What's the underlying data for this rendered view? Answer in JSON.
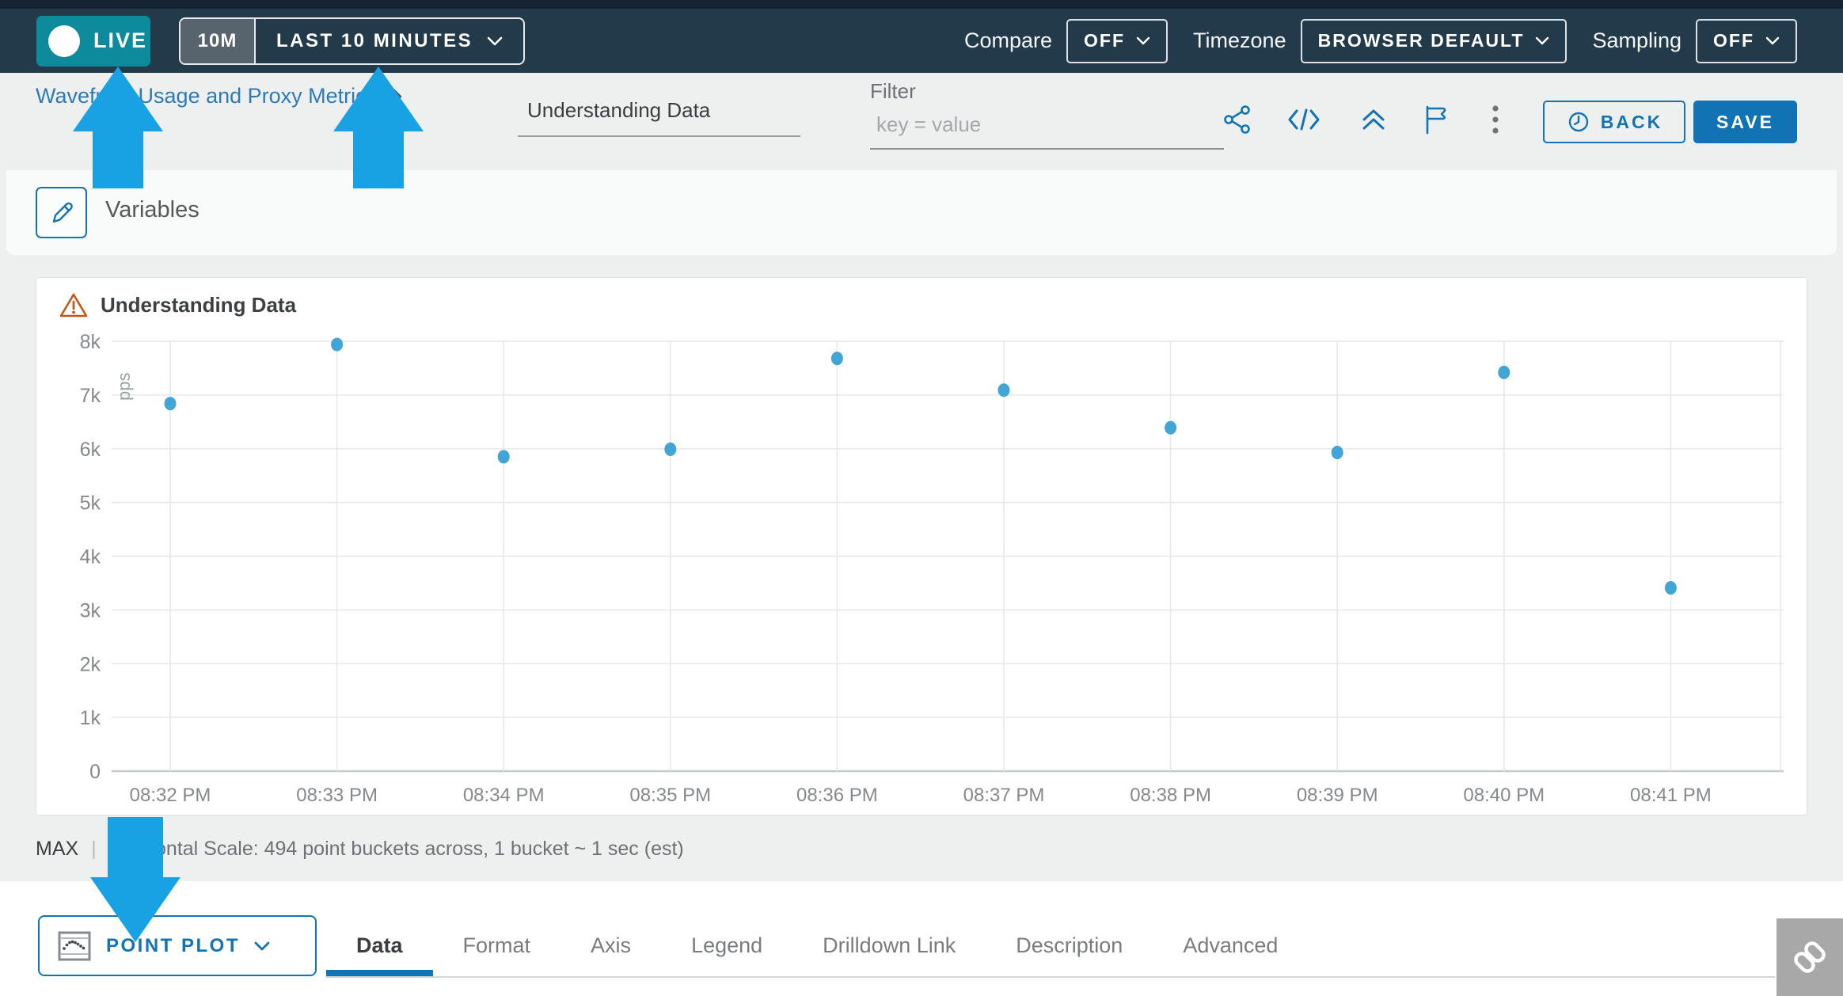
{
  "topbar": {
    "live_label": "LIVE",
    "window_badge": "10M",
    "time_range": "LAST 10 MINUTES",
    "compare_label": "Compare",
    "compare_value": "OFF",
    "timezone_label": "Timezone",
    "timezone_value": "BROWSER DEFAULT",
    "sampling_label": "Sampling",
    "sampling_value": "OFF"
  },
  "header": {
    "breadcrumb": "Wavefront Usage and Proxy Metrics",
    "chart_name": "Understanding Data",
    "filter_label": "Filter",
    "filter_placeholder": "key = value",
    "back_label": "BACK",
    "save_label": "SAVE"
  },
  "variables": {
    "label": "Variables"
  },
  "chart": {
    "title": "Understanding Data",
    "summary_stat": "MAX",
    "summary_divider": "|",
    "summary_text": "Horizontal Scale: 494 point buckets across, 1 bucket ~ 1 sec (est)"
  },
  "chart_data": {
    "type": "scatter",
    "title": "Understanding Data",
    "ylabel": "pps",
    "x": [
      "08:32 PM",
      "08:33 PM",
      "08:34 PM",
      "08:35 PM",
      "08:36 PM",
      "08:37 PM",
      "08:38 PM",
      "08:39 PM",
      "08:40 PM",
      "08:41 PM"
    ],
    "values": [
      6840,
      7940,
      5850,
      5990,
      7680,
      7090,
      6390,
      5930,
      7420,
      3410
    ],
    "ylim": [
      0,
      8000
    ],
    "ytick_labels": [
      "0",
      "1k",
      "2k",
      "3k",
      "4k",
      "5k",
      "6k",
      "7k",
      "8k"
    ],
    "grid": true,
    "legend": "none",
    "point_color": "#41a5d6"
  },
  "footer": {
    "chart_type": "POINT PLOT",
    "tabs": [
      "Data",
      "Format",
      "Axis",
      "Legend",
      "Drilldown Link",
      "Description",
      "Advanced"
    ],
    "active_tab": "Data"
  },
  "icons": {
    "toolbar": [
      "share-icon",
      "code-icon",
      "collapse-up-icon",
      "flag-icon",
      "kebab-menu-icon"
    ],
    "back_button": "history-clock-icon",
    "variables": "pencil-icon",
    "chart_title": "warning-icon",
    "chart_type_button": "point-plot-icon",
    "bottom_right": "link-icon"
  },
  "colors": {
    "topbar_bg": "#233a4b",
    "live_teal": "#0d8a9c",
    "accent_blue": "#1274b5",
    "arrow_blue": "#18a2e4",
    "point_blue": "#41a5d6",
    "warning_orange": "#c2571a"
  }
}
